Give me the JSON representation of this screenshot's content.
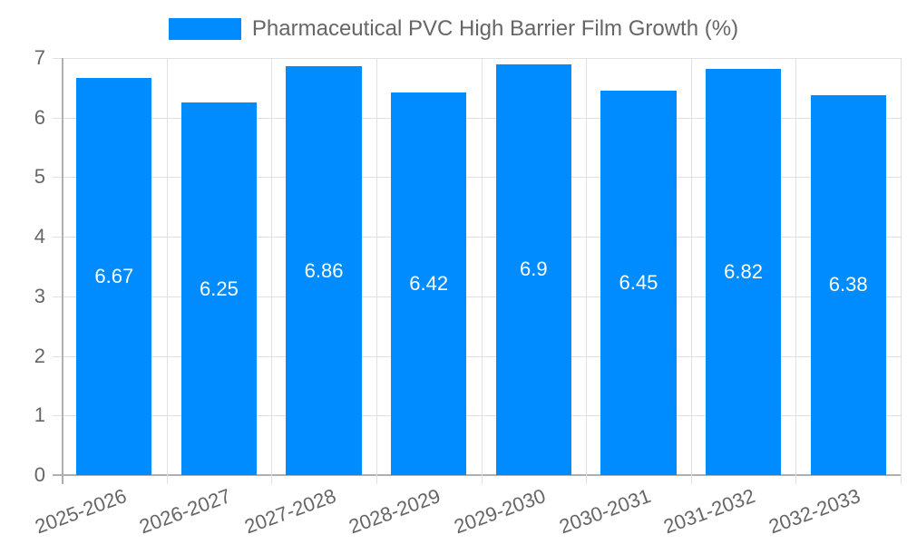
{
  "chart_data": {
    "type": "bar",
    "title": "",
    "legend": [
      "Pharmaceutical PVC High Barrier Film Growth (%)"
    ],
    "categories": [
      "2025-2026",
      "2026-2027",
      "2027-2028",
      "2028-2029",
      "2029-2030",
      "2030-2031",
      "2031-2032",
      "2032-2033"
    ],
    "series": [
      {
        "name": "Pharmaceutical PVC High Barrier Film Growth (%)",
        "values": [
          6.67,
          6.25,
          6.86,
          6.42,
          6.9,
          6.45,
          6.82,
          6.38
        ],
        "color": "#008cff"
      }
    ],
    "xlabel": "",
    "ylabel": "",
    "ylim": [
      0,
      7
    ],
    "yticks": [
      0,
      1,
      2,
      3,
      4,
      5,
      6,
      7
    ],
    "grid": true,
    "legend_position": "top",
    "data_labels": [
      "6.67",
      "6.25",
      "6.86",
      "6.42",
      "6.9",
      "6.45",
      "6.82",
      "6.38"
    ]
  },
  "legend": {
    "label": "Pharmaceutical PVC High Barrier Film Growth (%)",
    "color": "#008cff"
  }
}
